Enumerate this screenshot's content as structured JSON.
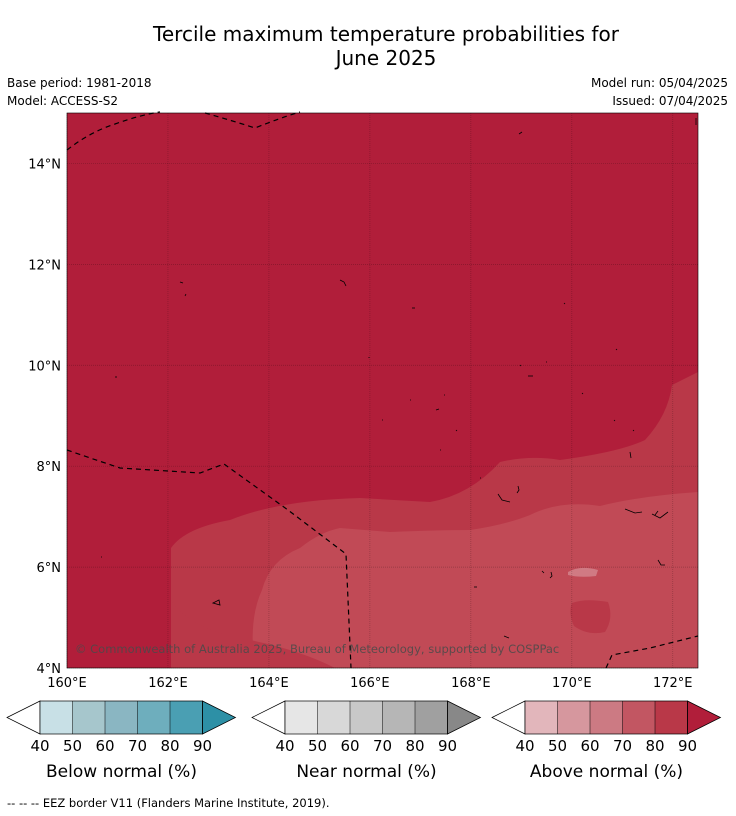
{
  "title_line1": "Tercile maximum temperature probabilities for",
  "title_line2": "June 2025",
  "base_period": "Base period: 1981-2018",
  "model": "Model: ACCESS-S2",
  "model_run": "Model run: 05/04/2025",
  "issued": "Issued: 07/04/2025",
  "copyright": "© Commonwealth of Australia 2025, Bureau of Meteorology, supported by COSPPac",
  "map": {
    "lon_range": [
      160,
      172.5
    ],
    "lat_range": [
      4,
      15
    ],
    "lon_ticks": [
      "160°E",
      "162°E",
      "164°E",
      "166°E",
      "168°E",
      "170°E",
      "172°E"
    ],
    "lat_ticks": [
      "4°N",
      "6°N",
      "8°N",
      "10°N",
      "12°N",
      "14°N"
    ],
    "colors": {
      "above_90": "#b11e3a",
      "above_80": "#b93848",
      "above_70": "#c14a56",
      "above_60": "#d07a83"
    }
  },
  "colorbars": [
    {
      "title": "Below normal (%)",
      "ticks": [
        "40",
        "50",
        "60",
        "70",
        "80",
        "90"
      ],
      "colors": [
        "#ffffff",
        "#c8e0e6",
        "#a6c6cc",
        "#8ab6c2",
        "#6eaebd",
        "#4a9fb3",
        "#2d90a6"
      ]
    },
    {
      "title": "Near normal (%)",
      "ticks": [
        "40",
        "50",
        "60",
        "70",
        "80",
        "90"
      ],
      "colors": [
        "#ffffff",
        "#e6e6e6",
        "#d8d8d8",
        "#c8c8c8",
        "#b6b6b6",
        "#a0a0a0",
        "#888888"
      ]
    },
    {
      "title": "Above normal (%)",
      "ticks": [
        "40",
        "50",
        "60",
        "70",
        "80",
        "90"
      ],
      "colors": [
        "#ffffff",
        "#e2b6bb",
        "#d6979e",
        "#cc7a83",
        "#c25662",
        "#b93848",
        "#b11e3a"
      ]
    }
  ],
  "footnote": "--  --  -- EEZ border V11 (Flanders Marine Institute, 2019)."
}
